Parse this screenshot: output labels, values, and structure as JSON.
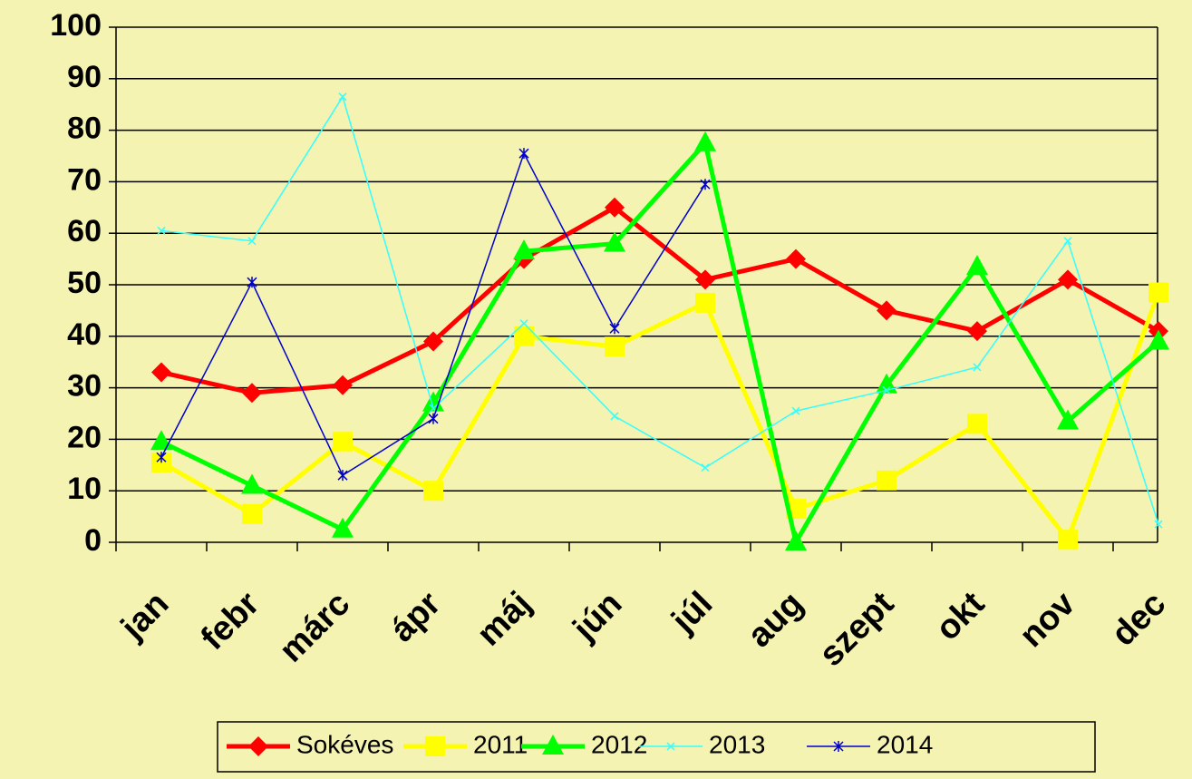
{
  "chart_data": {
    "type": "line",
    "categories": [
      "jan",
      "febr",
      "márc",
      "ápr",
      "máj",
      "jún",
      "júl",
      "aug",
      "szept",
      "okt",
      "nov",
      "dec"
    ],
    "series": [
      {
        "name": "Sokéves",
        "color": "#ff0000",
        "marker": "diamond",
        "values": [
          33,
          29,
          30.5,
          39,
          55,
          65,
          51,
          55,
          45,
          41,
          51,
          41
        ]
      },
      {
        "name": "2011",
        "color": "#ffff00",
        "marker": "square",
        "values": [
          15.5,
          5.5,
          19.5,
          10,
          40,
          38,
          46.5,
          6.5,
          12,
          23,
          0.5,
          48.5
        ]
      },
      {
        "name": "2012",
        "color": "#00ff00",
        "marker": "triangle",
        "values": [
          19.5,
          11,
          2.5,
          27,
          56.5,
          58,
          77.5,
          0,
          30.5,
          53.5,
          23.5,
          39
        ]
      },
      {
        "name": "2013",
        "color": "#33ffff",
        "marker": "x",
        "values": [
          60.5,
          58.5,
          86.5,
          26,
          42.5,
          24.5,
          14.5,
          25.5,
          29.5,
          34,
          58.5,
          3.5
        ]
      },
      {
        "name": "2014",
        "color": "#0000cc",
        "marker": "star",
        "values": [
          16.5,
          50.5,
          13,
          24,
          75.5,
          41.5,
          69.5,
          null,
          null,
          null,
          null,
          null
        ]
      }
    ],
    "ylim": [
      0,
      100
    ],
    "yticks": [
      0,
      10,
      20,
      30,
      40,
      50,
      60,
      70,
      80,
      90,
      100
    ],
    "grid": true,
    "legend": "bottom"
  }
}
